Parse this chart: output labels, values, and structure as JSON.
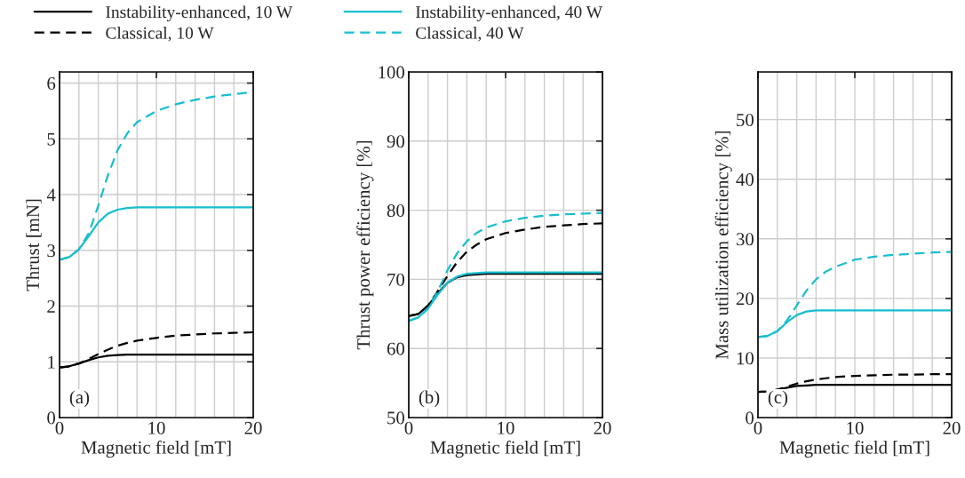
{
  "chart_data": [
    {
      "type": "line",
      "xlabel": "Magnetic field [mT]",
      "ylabel": "Thrust [mN]",
      "legend": "top",
      "grid": true,
      "annotations": [
        "(a)"
      ],
      "x": [
        0,
        1,
        2,
        3,
        4,
        5,
        6,
        7,
        8,
        10,
        12,
        14,
        16,
        18,
        20
      ],
      "xlim": [
        0,
        20
      ],
      "xticks": [
        0,
        {
          "value": 2,
          "label": null
        },
        {
          "value": 4,
          "label": null
        },
        {
          "value": 6,
          "label": null
        },
        {
          "value": 8,
          "label": null
        },
        10,
        {
          "value": 12,
          "label": null
        },
        {
          "value": 14,
          "label": null
        },
        {
          "value": 16,
          "label": null
        },
        {
          "value": 18,
          "label": null
        },
        20
      ],
      "ylim": [
        0,
        6.2
      ],
      "yticks": [
        0,
        1,
        2,
        3,
        4,
        5,
        6
      ],
      "series": [
        {
          "name": "Instability-enhanced, 10 W",
          "color": "#000000",
          "line_style": "solid",
          "values": [
            0.9,
            0.92,
            0.97,
            1.03,
            1.08,
            1.11,
            1.12,
            1.13,
            1.13,
            1.13,
            1.13,
            1.13,
            1.13,
            1.13,
            1.13
          ]
        },
        {
          "name": "Classical, 10 W",
          "color": "#000000",
          "line_style": "dashed",
          "values": [
            0.9,
            0.92,
            0.97,
            1.05,
            1.14,
            1.22,
            1.29,
            1.34,
            1.38,
            1.43,
            1.47,
            1.49,
            1.51,
            1.52,
            1.53
          ]
        },
        {
          "name": "Instability-enhanced, 40 W",
          "color": "#17becf",
          "line_style": "solid",
          "values": [
            2.83,
            2.88,
            3.02,
            3.25,
            3.5,
            3.66,
            3.73,
            3.76,
            3.77,
            3.77,
            3.77,
            3.77,
            3.77,
            3.77,
            3.77
          ]
        },
        {
          "name": "Classical, 40 W",
          "color": "#17becf",
          "line_style": "dashed",
          "values": [
            2.83,
            2.88,
            3.02,
            3.3,
            3.8,
            4.35,
            4.8,
            5.1,
            5.3,
            5.5,
            5.62,
            5.7,
            5.76,
            5.8,
            5.84
          ]
        }
      ]
    },
    {
      "type": "line",
      "xlabel": "Magnetic field [mT]",
      "ylabel": "Thrust power efficiency [%]",
      "grid": true,
      "annotations": [
        "(b)"
      ],
      "x": [
        0,
        1,
        2,
        3,
        4,
        5,
        6,
        7,
        8,
        10,
        12,
        14,
        16,
        18,
        20
      ],
      "xlim": [
        0,
        20
      ],
      "xticks": [
        0,
        {
          "value": 2,
          "label": null
        },
        {
          "value": 4,
          "label": null
        },
        {
          "value": 6,
          "label": null
        },
        {
          "value": 8,
          "label": null
        },
        10,
        {
          "value": 12,
          "label": null
        },
        {
          "value": 14,
          "label": null
        },
        {
          "value": 16,
          "label": null
        },
        {
          "value": 18,
          "label": null
        },
        20
      ],
      "ylim": [
        50,
        100
      ],
      "yticks": [
        50,
        60,
        70,
        80,
        90,
        100
      ],
      "series": [
        {
          "color": "#000000",
          "line_style": "solid",
          "values": [
            64.7,
            65.0,
            66.2,
            68.0,
            69.5,
            70.3,
            70.6,
            70.7,
            70.8,
            70.8,
            70.8,
            70.8,
            70.8,
            70.8,
            70.8
          ]
        },
        {
          "color": "#000000",
          "line_style": "dashed",
          "values": [
            64.7,
            65.0,
            66.2,
            68.3,
            70.5,
            72.5,
            74.0,
            75.0,
            75.8,
            76.7,
            77.2,
            77.6,
            77.8,
            78.0,
            78.1
          ]
        },
        {
          "color": "#17becf",
          "line_style": "solid",
          "values": [
            64.0,
            64.5,
            65.8,
            67.8,
            69.5,
            70.4,
            70.8,
            70.9,
            71.0,
            71.0,
            71.0,
            71.0,
            71.0,
            71.0,
            71.0
          ]
        },
        {
          "color": "#17becf",
          "line_style": "dashed",
          "values": [
            64.0,
            64.5,
            65.8,
            68.3,
            71.3,
            73.8,
            75.5,
            76.7,
            77.5,
            78.4,
            78.9,
            79.2,
            79.4,
            79.5,
            79.6
          ]
        }
      ]
    },
    {
      "type": "line",
      "xlabel": "Magnetic field [mT]",
      "ylabel": "Mass utilization efficiency [%]",
      "grid": true,
      "annotations": [
        "(c)"
      ],
      "x": [
        0,
        1,
        2,
        3,
        4,
        5,
        6,
        7,
        8,
        10,
        12,
        14,
        16,
        18,
        20
      ],
      "xlim": [
        0,
        20
      ],
      "xticks": [
        0,
        {
          "value": 2,
          "label": null
        },
        {
          "value": 4,
          "label": null
        },
        {
          "value": 6,
          "label": null
        },
        {
          "value": 8,
          "label": null
        },
        10,
        {
          "value": 12,
          "label": null
        },
        {
          "value": 14,
          "label": null
        },
        {
          "value": 16,
          "label": null
        },
        {
          "value": 18,
          "label": null
        },
        20
      ],
      "ylim": [
        0,
        58
      ],
      "yticks": [
        0,
        10,
        20,
        30,
        40,
        50
      ],
      "series": [
        {
          "color": "#000000",
          "line_style": "solid",
          "values": [
            4.3,
            4.4,
            4.7,
            5.0,
            5.3,
            5.4,
            5.5,
            5.5,
            5.5,
            5.5,
            5.5,
            5.5,
            5.5,
            5.5,
            5.5
          ]
        },
        {
          "color": "#000000",
          "line_style": "dashed",
          "values": [
            4.3,
            4.4,
            4.7,
            5.2,
            5.7,
            6.1,
            6.4,
            6.6,
            6.8,
            7.0,
            7.1,
            7.2,
            7.2,
            7.3,
            7.3
          ]
        },
        {
          "color": "#17becf",
          "line_style": "solid",
          "values": [
            13.5,
            13.7,
            14.5,
            16.0,
            17.2,
            17.8,
            18.0,
            18.0,
            18.0,
            18.0,
            18.0,
            18.0,
            18.0,
            18.0,
            18.0
          ]
        },
        {
          "color": "#17becf",
          "line_style": "dashed",
          "values": [
            13.5,
            13.7,
            14.5,
            16.3,
            18.8,
            21.3,
            23.2,
            24.5,
            25.3,
            26.5,
            27.0,
            27.3,
            27.5,
            27.7,
            27.8
          ]
        }
      ]
    }
  ]
}
